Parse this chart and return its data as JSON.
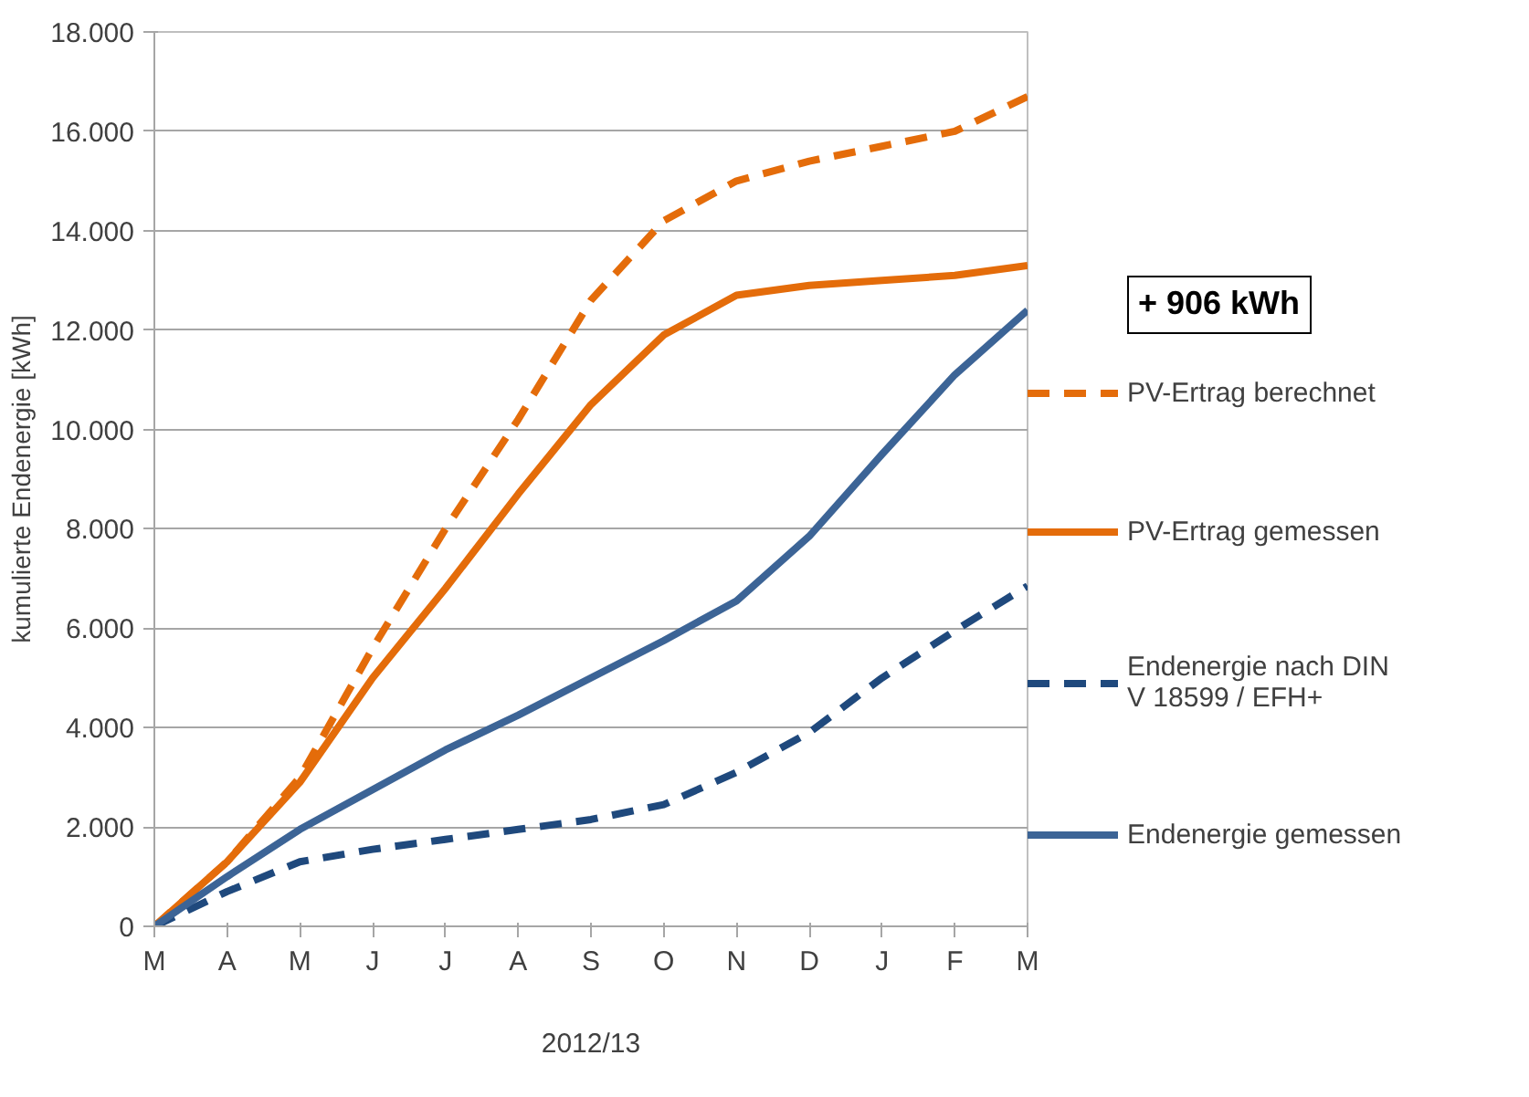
{
  "chart_data": {
    "type": "line",
    "xlabel": "2012/13",
    "ylabel": "kumulierte Endenergie [kWh]",
    "categories": [
      "M",
      "A",
      "M",
      "J",
      "J",
      "A",
      "S",
      "O",
      "N",
      "D",
      "J",
      "F",
      "M"
    ],
    "ylim": [
      0,
      18000
    ],
    "yticks": [
      {
        "value": 0,
        "label": "0"
      },
      {
        "value": 2000,
        "label": "2.000"
      },
      {
        "value": 4000,
        "label": "4.000"
      },
      {
        "value": 6000,
        "label": "6.000"
      },
      {
        "value": 8000,
        "label": "8.000"
      },
      {
        "value": 10000,
        "label": "10.000"
      },
      {
        "value": 12000,
        "label": "12.000"
      },
      {
        "value": 14000,
        "label": "14.000"
      },
      {
        "value": 16000,
        "label": "16.000"
      },
      {
        "value": 18000,
        "label": "18.000"
      }
    ],
    "grid": "y",
    "legend": "right",
    "annotations": [
      "+ 906 kWh"
    ],
    "series": [
      {
        "name": "PV-Ertrag berechnet",
        "color": "#e46c0a",
        "line_style": "dashed",
        "values": [
          0,
          1300,
          3000,
          5600,
          8000,
          10200,
          12600,
          14200,
          15000,
          15400,
          15700,
          16000,
          16700
        ]
      },
      {
        "name": "PV-Ertrag gemessen",
        "color": "#e46c0a",
        "line_style": "solid",
        "values": [
          0,
          1300,
          2900,
          5000,
          6800,
          8700,
          10500,
          11900,
          12700,
          12900,
          13000,
          13100,
          13300
        ]
      },
      {
        "name": "Endenergie nach DIN V 18599 / EFH+",
        "color": "#1f497d",
        "line_style": "dashed",
        "values": [
          0,
          700,
          1300,
          1550,
          1750,
          1950,
          2150,
          2450,
          3100,
          3900,
          5000,
          5950,
          6850
        ]
      },
      {
        "name": "Endenergie gemessen",
        "color": "#3c6496",
        "line_style": "solid",
        "values": [
          0,
          1000,
          1950,
          2750,
          3550,
          4250,
          5000,
          5750,
          6550,
          7850,
          9500,
          11100,
          12400
        ]
      }
    ]
  }
}
